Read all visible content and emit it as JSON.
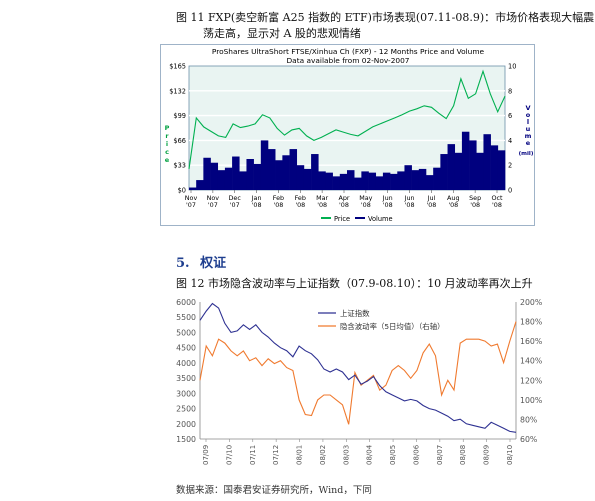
{
  "figure11": {
    "caption_line1": "图 11 FXP(卖空新富 A25 指数的 ETF)市场表现(07.11-08.9)：市场价格表现大幅震",
    "caption_line2": "荡走高，显示对 A 股的悲观情绪",
    "title": "ProShares UltraShort FTSE/Xinhua Ch (FXP) - 12 Months Price and Volume",
    "subtitle": "Data available from 02-Nov-2007",
    "ylabel_left": "Price",
    "ylabel_right": "Volume",
    "ylabel_right_unit": "(mil)",
    "legend_price": "Price",
    "legend_volume": "Volume",
    "colors": {
      "price": "#00b050",
      "volume": "#00007f"
    }
  },
  "section": {
    "number": "5.",
    "title": "权证"
  },
  "figure12": {
    "caption": "图 12  市场隐含波动率与上证指数（07.9-08.10）：10 月波动率再次上升",
    "source": "数据来源：国泰君安证券研究所，Wind，下同",
    "colors": {
      "index": "#2e3192",
      "vol": "#f07a2f"
    }
  },
  "chart_data": [
    {
      "type": "line",
      "title": "ProShares UltraShort FTSE/Xinhua Ch (FXP) - 12 Months Price and Volume",
      "subtitle": "Data available from 02-Nov-2007",
      "x_ticks": [
        "Nov '07",
        "Nov '07",
        "Dec '07",
        "Jan '08",
        "Feb '08",
        "Feb '08",
        "Mar '08",
        "Apr '08",
        "May '08",
        "Jun '08",
        "Jun '08",
        "Jul '08",
        "Aug '08",
        "Sep '08",
        "Oct '08"
      ],
      "y_ticks_left": [
        "$165",
        "$132",
        "$99",
        "$66",
        "$33",
        "$0"
      ],
      "y_ticks_right": [
        "10",
        "8",
        "6",
        "4",
        "2",
        "0"
      ],
      "ylim_left": [
        0,
        165
      ],
      "ylim_right": [
        0,
        10
      ],
      "series": [
        {
          "name": "Price",
          "axis": "left",
          "values": [
            28,
            96,
            84,
            78,
            72,
            70,
            88,
            83,
            85,
            88,
            100,
            96,
            82,
            73,
            80,
            82,
            72,
            66,
            70,
            75,
            80,
            77,
            74,
            72,
            78,
            84,
            88,
            92,
            96,
            100,
            105,
            108,
            112,
            110,
            102,
            95,
            112,
            148,
            122,
            128,
            158,
            128,
            104,
            125
          ]
        },
        {
          "name": "Volume",
          "axis": "right",
          "values": [
            0.2,
            0.8,
            2.6,
            2.2,
            1.6,
            1.8,
            2.7,
            1.5,
            2.5,
            2.1,
            4.0,
            3.3,
            2.4,
            2.8,
            3.3,
            2.0,
            1.7,
            2.9,
            1.5,
            1.4,
            1.1,
            1.3,
            1.6,
            1.0,
            1.5,
            1.4,
            1.1,
            1.4,
            1.3,
            1.5,
            2.0,
            1.6,
            1.7,
            1.2,
            1.8,
            2.9,
            3.7,
            3.0,
            4.7,
            4.0,
            3.0,
            4.5,
            3.6,
            3.2
          ]
        }
      ],
      "grid": false,
      "legend": "bottom"
    },
    {
      "type": "line",
      "y_ticks_left": [
        "6000",
        "5500",
        "5000",
        "4500",
        "4000",
        "3500",
        "3000",
        "2500",
        "2000",
        "1500"
      ],
      "y_ticks_right": [
        "200%",
        "180%",
        "160%",
        "140%",
        "120%",
        "100%",
        "80%",
        "60%"
      ],
      "x_ticks": [
        "07/09",
        "07/10",
        "07/11",
        "07/12",
        "08/01",
        "08/02",
        "08/03",
        "08/04",
        "08/05",
        "08/06",
        "08/07",
        "08/08",
        "08/09",
        "08/10"
      ],
      "ylim_left": [
        1500,
        6000
      ],
      "ylim_right": [
        0.6,
        2.0
      ],
      "series": [
        {
          "name": "上证指数",
          "axis": "left",
          "values": [
            5400,
            5700,
            5950,
            5800,
            5300,
            5000,
            5050,
            5250,
            5100,
            5250,
            5000,
            4850,
            4650,
            4500,
            4400,
            4200,
            4550,
            4400,
            4300,
            4100,
            3800,
            3700,
            3800,
            3700,
            3450,
            3600,
            3300,
            3400,
            3550,
            3250,
            3050,
            2950,
            2850,
            2750,
            2800,
            2750,
            2600,
            2500,
            2450,
            2350,
            2250,
            2100,
            2150,
            2000,
            1950,
            1900,
            1850,
            2050,
            1950,
            1850,
            1750,
            1720
          ]
        },
        {
          "name": "隐含波动率（5日均值）（右轴）",
          "axis": "right",
          "values": [
            1.2,
            1.55,
            1.45,
            1.62,
            1.58,
            1.5,
            1.45,
            1.5,
            1.4,
            1.43,
            1.35,
            1.42,
            1.37,
            1.4,
            1.33,
            1.3,
            1.0,
            0.85,
            0.84,
            1.0,
            1.05,
            1.05,
            1.0,
            0.95,
            0.75,
            1.28,
            1.15,
            1.2,
            1.25,
            1.1,
            1.15,
            1.3,
            1.35,
            1.3,
            1.22,
            1.3,
            1.48,
            1.57,
            1.45,
            1.05,
            1.2,
            1.1,
            1.58,
            1.62,
            1.62,
            1.62,
            1.6,
            1.55,
            1.57,
            1.38,
            1.6,
            1.8
          ]
        }
      ],
      "grid": false,
      "legend": "top-center"
    }
  ]
}
